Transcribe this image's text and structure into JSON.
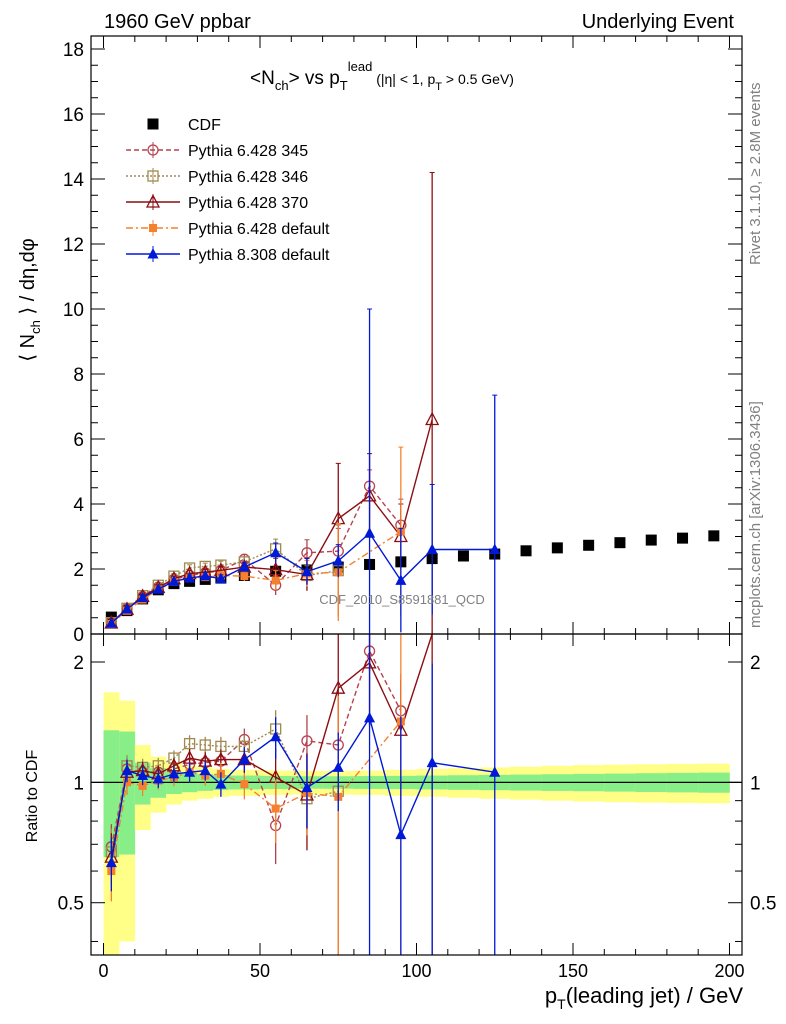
{
  "header": {
    "left": "1960 GeV ppbar",
    "right": "Underlying Event"
  },
  "side_labels": {
    "rivet": "Rivet 3.1.10, ≥ 2.8M events",
    "mcplots": "mcplots.cern.ch [arXiv:1306.3436]"
  },
  "analysis_watermark": "CDF_2010_S8591881_QCD",
  "colors": {
    "CDF": "#000000",
    "Pythia 6.428 345": "#b5424f",
    "Pythia 6.428 346": "#a08a50",
    "Pythia 6.428 370": "#8b0d12",
    "Pythia 6.428 default": "#f5802f",
    "Pythia 8.308 default": "#0019d6",
    "band_inner": "#88ee88",
    "band_outer": "#ffff88"
  },
  "chart_data": [
    {
      "type": "scatter",
      "panel": "main",
      "title": "<N_ch> vs p_T^lead (|η| < 1, p_T > 0.5 GeV)",
      "xlabel": "p_T(leading jet) / GeV",
      "ylabel": "⟨ N_ch ⟩ / dη,dφ",
      "xlim": [
        -4,
        204
      ],
      "ylim": [
        0,
        18.4
      ],
      "yticks": [
        0,
        2,
        4,
        6,
        8,
        10,
        12,
        14,
        16,
        18
      ],
      "xticks": [
        0,
        50,
        100,
        150,
        200
      ],
      "legend_position": "top-left",
      "series": [
        {
          "name": "CDF",
          "style": "square",
          "x": [
            2.5,
            7.5,
            12.5,
            17.5,
            22.5,
            27.5,
            32.5,
            37.5,
            45,
            55,
            65,
            75,
            85,
            95,
            105,
            115,
            125,
            135,
            145,
            155,
            165,
            175,
            185,
            195
          ],
          "y": [
            0.52,
            0.72,
            1.08,
            1.36,
            1.55,
            1.62,
            1.68,
            1.72,
            1.8,
            1.93,
            1.97,
            2.06,
            2.14,
            2.22,
            2.32,
            2.4,
            2.46,
            2.56,
            2.65,
            2.73,
            2.81,
            2.89,
            2.95,
            3.02
          ]
        },
        {
          "name": "Pythia 6.428 345",
          "style": "open-circle-dashed",
          "x": [
            2.5,
            7.5,
            12.5,
            17.5,
            22.5,
            27.5,
            32.5,
            37.5,
            45,
            55,
            65,
            75,
            85,
            95
          ],
          "y": [
            0.36,
            0.78,
            1.15,
            1.44,
            1.68,
            1.8,
            1.88,
            1.95,
            2.3,
            1.5,
            2.5,
            2.55,
            4.55,
            3.35
          ],
          "err": [
            0.05,
            0.05,
            0.06,
            0.07,
            0.08,
            0.08,
            0.1,
            0.1,
            0.15,
            0.3,
            0.4,
            0.7,
            0.5,
            0.8
          ]
        },
        {
          "name": "Pythia 6.428 346",
          "style": "open-square-dotted",
          "x": [
            2.5,
            7.5,
            12.5,
            17.5,
            22.5,
            27.5,
            32.5,
            37.5,
            45,
            55,
            65,
            75
          ],
          "y": [
            0.35,
            0.79,
            1.18,
            1.5,
            1.78,
            2.03,
            2.08,
            2.12,
            2.22,
            2.62,
            1.8,
            1.95
          ],
          "err": [
            0.05,
            0.05,
            0.06,
            0.07,
            0.08,
            0.1,
            0.1,
            0.12,
            0.15,
            0.3,
            0.3,
            1.4
          ]
        },
        {
          "name": "Pythia 6.428 370",
          "style": "open-triangle-solid",
          "x": [
            2.5,
            7.5,
            12.5,
            17.5,
            22.5,
            27.5,
            32.5,
            37.5,
            45,
            55,
            65,
            75,
            85,
            95,
            105
          ],
          "y": [
            0.34,
            0.76,
            1.16,
            1.43,
            1.7,
            1.86,
            1.9,
            1.96,
            2.06,
            1.98,
            1.83,
            3.55,
            4.25,
            3.0,
            6.6
          ],
          "err": [
            0.05,
            0.05,
            0.06,
            0.07,
            0.08,
            0.1,
            0.1,
            0.12,
            0.15,
            0.35,
            0.5,
            1.7,
            1.3,
            1.0,
            7.6
          ]
        },
        {
          "name": "Pythia 6.428 default",
          "style": "filled-square-dashdot",
          "x": [
            2.5,
            7.5,
            12.5,
            17.5,
            22.5,
            27.5,
            32.5,
            37.5,
            45,
            55,
            65,
            75,
            95
          ],
          "y": [
            0.31,
            0.72,
            1.06,
            1.37,
            1.6,
            1.72,
            1.75,
            1.8,
            1.78,
            1.65,
            1.86,
            1.9,
            3.15
          ],
          "err": [
            0.05,
            0.05,
            0.06,
            0.07,
            0.08,
            0.1,
            0.1,
            0.12,
            0.15,
            0.3,
            0.4,
            1.5,
            2.6
          ]
        },
        {
          "name": "Pythia 8.308 default",
          "style": "filled-triangle-solid",
          "x": [
            2.5,
            7.5,
            12.5,
            17.5,
            22.5,
            27.5,
            32.5,
            37.5,
            45,
            55,
            65,
            75,
            85,
            95,
            105,
            125
          ],
          "y": [
            0.33,
            0.77,
            1.12,
            1.38,
            1.62,
            1.72,
            1.79,
            1.7,
            2.06,
            2.5,
            1.92,
            2.25,
            3.1,
            1.65,
            2.6,
            2.6
          ],
          "err": [
            0.05,
            0.05,
            0.06,
            0.07,
            0.08,
            0.1,
            0.1,
            0.12,
            0.15,
            0.3,
            0.4,
            0.5,
            6.9,
            1.6,
            2.0,
            4.75
          ]
        }
      ]
    },
    {
      "type": "line",
      "panel": "ratio",
      "ylabel": "Ratio to CDF",
      "xlim": [
        -4,
        204
      ],
      "ylim": [
        0.37,
        2.35
      ],
      "ylog": true,
      "yticks": [
        0.5,
        1,
        2
      ],
      "bands": {
        "x_edges": [
          0,
          5,
          10,
          15,
          20,
          25,
          30,
          35,
          40,
          50,
          60,
          70,
          80,
          90,
          100,
          110,
          120,
          130,
          140,
          150,
          160,
          170,
          180,
          190,
          200
        ],
        "inner": [
          0.35,
          0.34,
          0.12,
          0.085,
          0.065,
          0.055,
          0.048,
          0.043,
          0.04,
          0.038,
          0.036,
          0.036,
          0.037,
          0.038,
          0.04,
          0.042,
          0.044,
          0.046,
          0.048,
          0.05,
          0.052,
          0.054,
          0.056,
          0.058
        ],
        "outer": [
          0.68,
          0.6,
          0.24,
          0.16,
          0.12,
          0.1,
          0.09,
          0.08,
          0.075,
          0.07,
          0.068,
          0.068,
          0.07,
          0.075,
          0.08,
          0.085,
          0.09,
          0.095,
          0.1,
          0.105,
          0.108,
          0.11,
          0.112,
          0.114
        ]
      },
      "series": [
        {
          "name": "Pythia 6.428 345",
          "x": [
            2.5,
            7.5,
            12.5,
            17.5,
            22.5,
            27.5,
            32.5,
            37.5,
            45,
            55,
            65,
            75,
            85,
            95
          ],
          "y": [
            0.69,
            1.08,
            1.06,
            1.06,
            1.08,
            1.11,
            1.12,
            1.13,
            1.28,
            0.78,
            1.27,
            1.24,
            2.13,
            1.51
          ]
        },
        {
          "name": "Pythia 6.428 346",
          "x": [
            2.5,
            7.5,
            12.5,
            17.5,
            22.5,
            27.5,
            32.5,
            37.5,
            45,
            55,
            65,
            75
          ],
          "y": [
            0.67,
            1.1,
            1.09,
            1.1,
            1.15,
            1.25,
            1.24,
            1.23,
            1.23,
            1.36,
            0.91,
            0.95
          ]
        },
        {
          "name": "Pythia 6.428 370",
          "x": [
            2.5,
            7.5,
            12.5,
            17.5,
            22.5,
            27.5,
            32.5,
            37.5,
            45,
            55,
            65,
            75,
            85,
            95,
            105
          ],
          "y": [
            0.65,
            1.06,
            1.07,
            1.05,
            1.1,
            1.15,
            1.13,
            1.14,
            1.14,
            1.03,
            0.93,
            1.72,
            1.99,
            1.35,
            2.84
          ]
        },
        {
          "name": "Pythia 6.428 default",
          "x": [
            2.5,
            7.5,
            12.5,
            17.5,
            22.5,
            27.5,
            32.5,
            37.5,
            45,
            55,
            65,
            75,
            95
          ],
          "y": [
            0.6,
            1.0,
            0.98,
            1.01,
            1.03,
            1.06,
            1.04,
            1.05,
            0.99,
            0.86,
            0.94,
            0.92,
            1.42
          ]
        },
        {
          "name": "Pythia 8.308 default",
          "x": [
            2.5,
            7.5,
            12.5,
            17.5,
            22.5,
            27.5,
            32.5,
            37.5,
            45,
            55,
            65,
            75,
            85,
            95,
            105,
            125
          ],
          "y": [
            0.63,
            1.07,
            1.04,
            1.02,
            1.05,
            1.06,
            1.07,
            0.99,
            1.14,
            1.3,
            0.97,
            1.09,
            1.45,
            0.74,
            1.12,
            1.06
          ]
        }
      ]
    }
  ]
}
